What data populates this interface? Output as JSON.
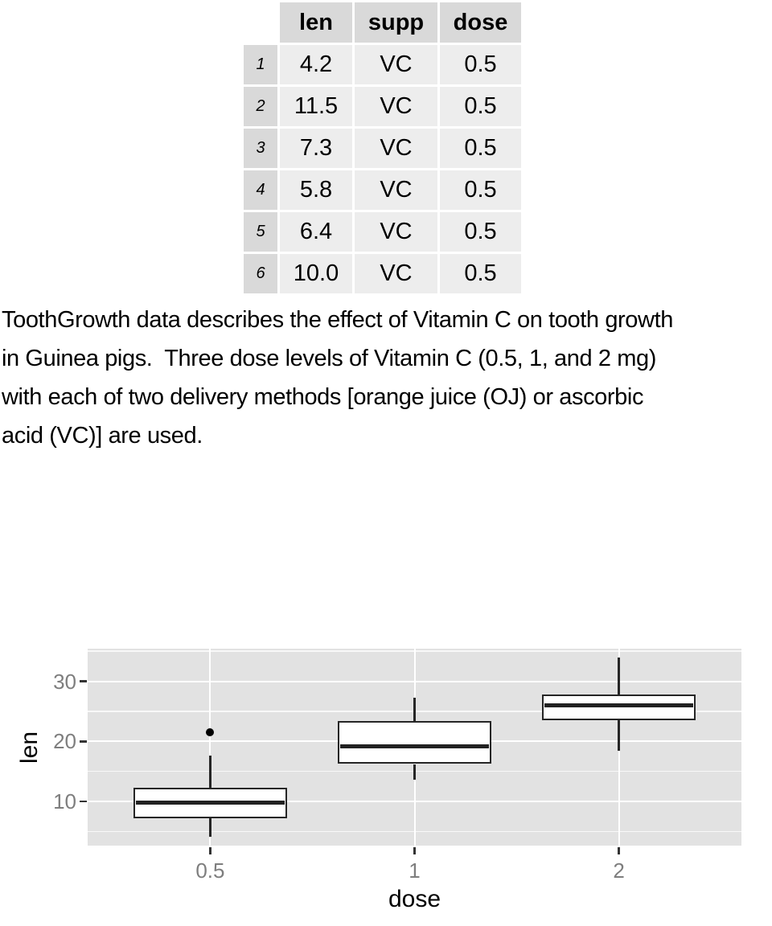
{
  "table": {
    "columns": [
      "len",
      "supp",
      "dose"
    ],
    "rows": [
      {
        "row": "1",
        "len": "4.2",
        "supp": "VC",
        "dose": "0.5"
      },
      {
        "row": "2",
        "len": "11.5",
        "supp": "VC",
        "dose": "0.5"
      },
      {
        "row": "3",
        "len": "7.3",
        "supp": "VC",
        "dose": "0.5"
      },
      {
        "row": "4",
        "len": "5.8",
        "supp": "VC",
        "dose": "0.5"
      },
      {
        "row": "5",
        "len": "6.4",
        "supp": "VC",
        "dose": "0.5"
      },
      {
        "row": "6",
        "len": "10.0",
        "supp": "VC",
        "dose": "0.5"
      }
    ]
  },
  "description": {
    "lines": [
      "ToothGrowth data describes the effect of Vitamin C on tooth growth",
      "in Guinea pigs.  Three dose levels of Vitamin C (0.5, 1, and 2 mg)",
      "with each of two delivery methods [orange juice (OJ) or ascorbic",
      "acid (VC)] are used."
    ]
  },
  "chart_data": {
    "type": "boxplot",
    "title": "",
    "xlabel": "dose",
    "ylabel": "len",
    "categories": [
      "0.5",
      "1",
      "2"
    ],
    "y_ticks": [
      10,
      20,
      30
    ],
    "y_minor_ticks": [
      5,
      15,
      25,
      35
    ],
    "ylim": [
      2.7,
      35.4
    ],
    "grid": true,
    "legend": "none",
    "panel_bg": "#e2e2e2",
    "grid_color": "#ffffff",
    "box_fill": "#ffffff",
    "box_stroke": "#262626",
    "axis_text_color": "#7e7e7e",
    "series": [
      {
        "category": "0.5",
        "lower_whisker": 4.2,
        "q1": 7.2,
        "median": 9.85,
        "q3": 12.25,
        "upper_whisker": 17.6,
        "outliers": [
          21.5
        ]
      },
      {
        "category": "1",
        "lower_whisker": 13.6,
        "q1": 16.25,
        "median": 19.25,
        "q3": 23.4,
        "upper_whisker": 27.3,
        "outliers": []
      },
      {
        "category": "2",
        "lower_whisker": 18.5,
        "q1": 23.5,
        "median": 25.95,
        "q3": 27.8,
        "upper_whisker": 33.9,
        "outliers": []
      }
    ]
  }
}
